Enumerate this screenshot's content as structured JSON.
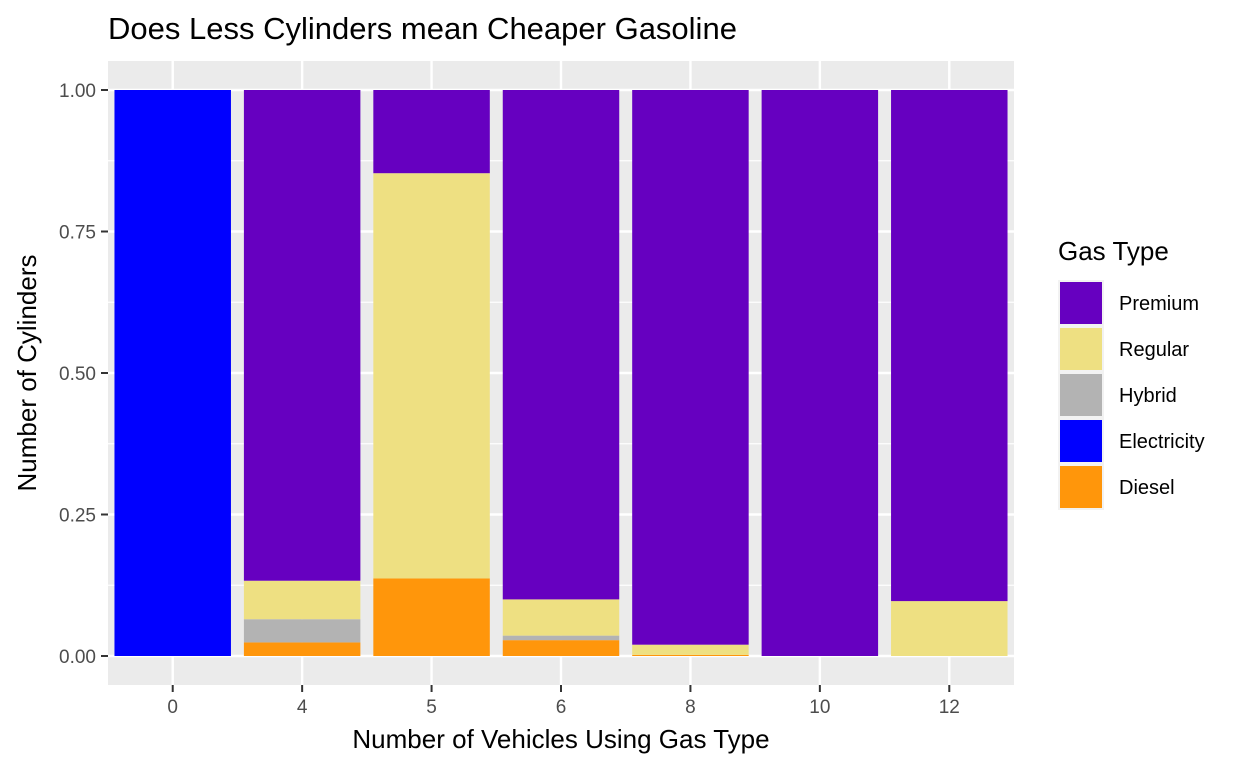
{
  "chart_data": {
    "type": "bar",
    "stacked": true,
    "title": "Does Less Cylinders mean Cheaper Gasoline",
    "xlabel": "Number of Vehicles Using Gas Type",
    "ylabel": "Number of Cylinders",
    "categories": [
      "0",
      "4",
      "5",
      "6",
      "8",
      "10",
      "12"
    ],
    "ylim": [
      0,
      1
    ],
    "yticks": [
      "0.00",
      "0.25",
      "0.50",
      "0.75",
      "1.00"
    ],
    "grid": true,
    "legend": {
      "title": "Gas Type",
      "position": "right"
    },
    "stack_order_bottom_to_top": [
      "Diesel",
      "Electricity",
      "Hybrid",
      "Regular",
      "Premium"
    ],
    "series": [
      {
        "name": "Premium",
        "color": "#6600c0",
        "values": [
          0,
          0.867,
          0.147,
          0.9,
          0.98,
          1.0,
          0.903
        ]
      },
      {
        "name": "Regular",
        "color": "#eee082",
        "values": [
          0,
          0.068,
          0.716,
          0.064,
          0.018,
          0,
          0.097
        ]
      },
      {
        "name": "Hybrid",
        "color": "#b3b3b3",
        "values": [
          0,
          0.041,
          0,
          0.008,
          0,
          0,
          0
        ]
      },
      {
        "name": "Electricity",
        "color": "#0000ff",
        "values": [
          1.0,
          0,
          0,
          0,
          0,
          0,
          0
        ]
      },
      {
        "name": "Diesel",
        "color": "#ff960b",
        "values": [
          0,
          0.024,
          0.137,
          0.028,
          0.002,
          0,
          0
        ]
      }
    ]
  }
}
